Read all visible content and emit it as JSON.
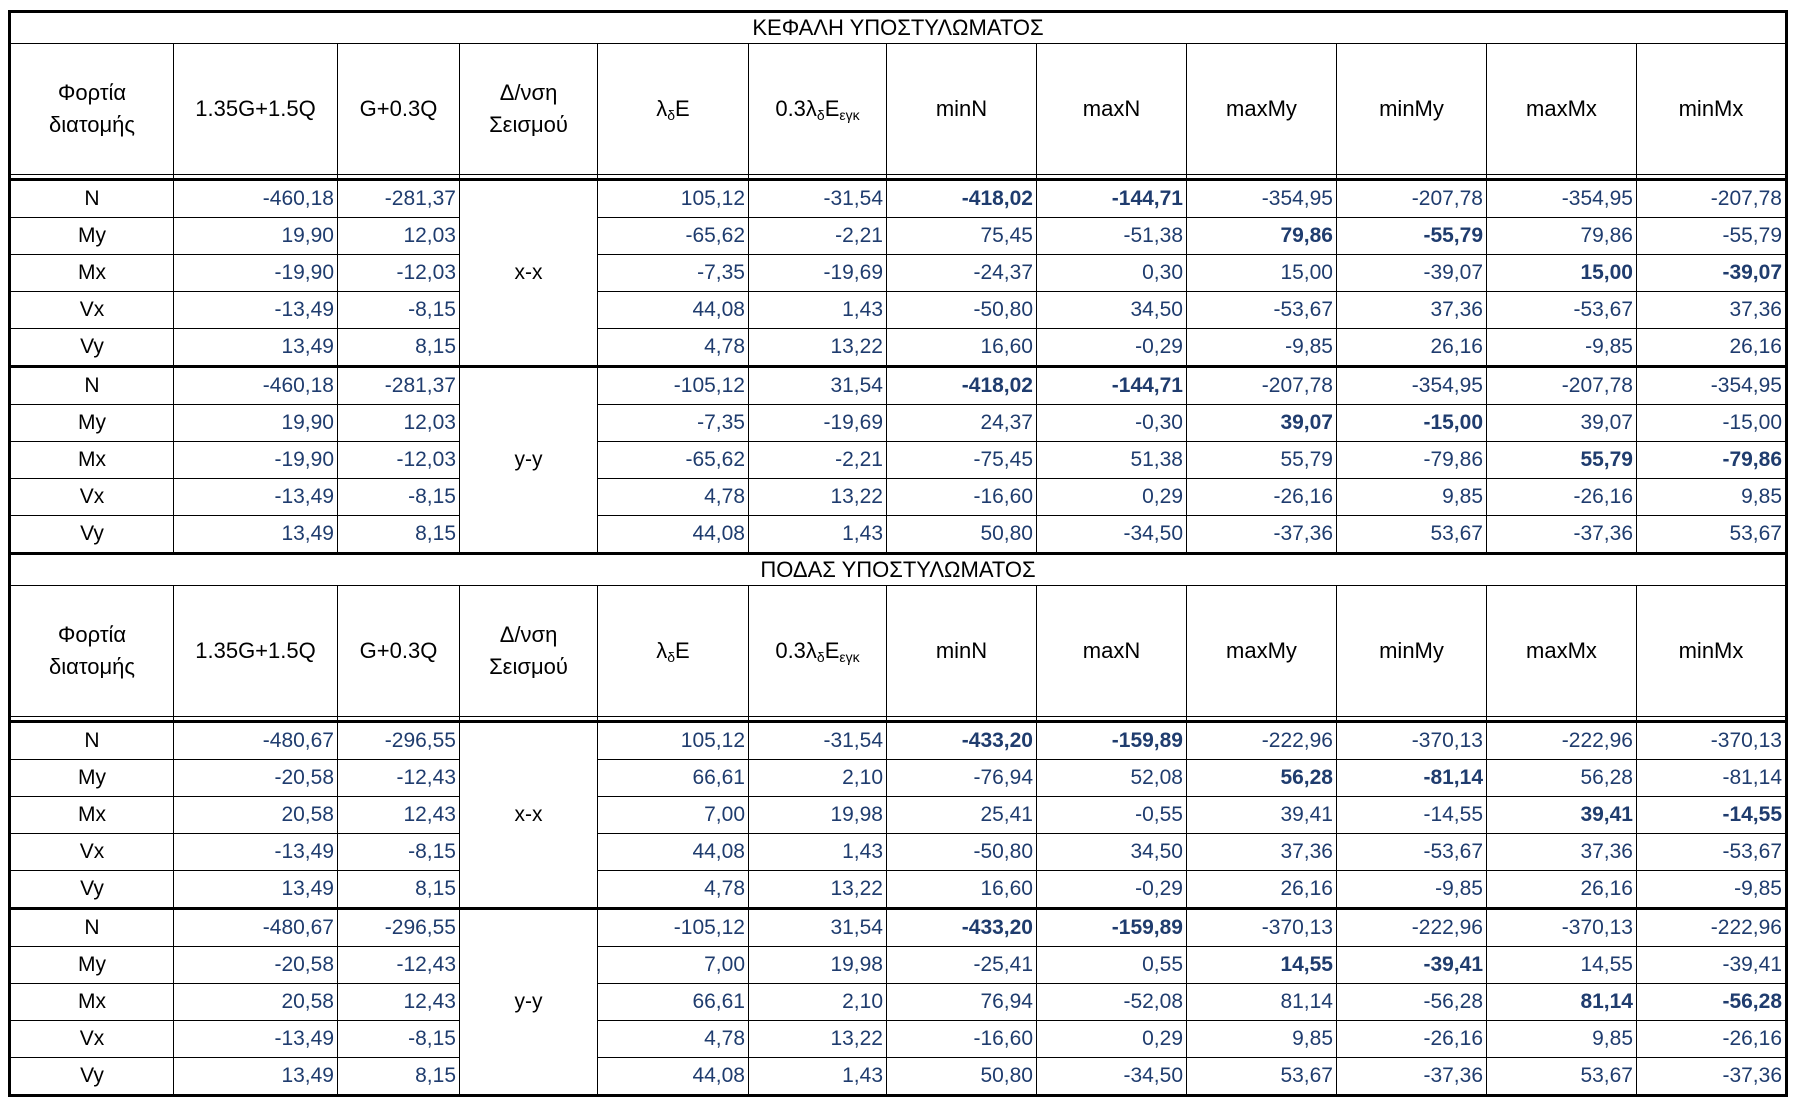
{
  "sections": [
    {
      "title": "ΚΕΦΑΛΗ ΥΠΟΣΤΥΛΩΜΑΤΟΣ",
      "headers": [
        "Φορτία διατομής",
        "1.35G+1.5Q",
        "G+0.3Q",
        "Δ/νση Σεισμού",
        "λδE",
        "0.3λδEεγκ",
        "minN",
        "maxN",
        "maxMy",
        "minMy",
        "maxMx",
        "minMx"
      ],
      "groups": [
        {
          "direction": "x-x",
          "rows": [
            {
              "label": "N",
              "values": [
                "-460,18",
                "-281,37",
                "105,12",
                "-31,54",
                "-418,02",
                "-144,71",
                "-354,95",
                "-207,78",
                "-354,95",
                "-207,78"
              ],
              "bold": [
                4,
                5
              ]
            },
            {
              "label": "My",
              "values": [
                "19,90",
                "12,03",
                "-65,62",
                "-2,21",
                "75,45",
                "-51,38",
                "79,86",
                "-55,79",
                "79,86",
                "-55,79"
              ],
              "bold": [
                6,
                7
              ]
            },
            {
              "label": "Mx",
              "values": [
                "-19,90",
                "-12,03",
                "-7,35",
                "-19,69",
                "-24,37",
                "0,30",
                "15,00",
                "-39,07",
                "15,00",
                "-39,07"
              ],
              "bold": [
                8,
                9
              ]
            },
            {
              "label": "Vx",
              "values": [
                "-13,49",
                "-8,15",
                "44,08",
                "1,43",
                "-50,80",
                "34,50",
                "-53,67",
                "37,36",
                "-53,67",
                "37,36"
              ],
              "bold": []
            },
            {
              "label": "Vy",
              "values": [
                "13,49",
                "8,15",
                "4,78",
                "13,22",
                "16,60",
                "-0,29",
                "-9,85",
                "26,16",
                "-9,85",
                "26,16"
              ],
              "bold": []
            }
          ]
        },
        {
          "direction": "y-y",
          "rows": [
            {
              "label": "N",
              "values": [
                "-460,18",
                "-281,37",
                "-105,12",
                "31,54",
                "-418,02",
                "-144,71",
                "-207,78",
                "-354,95",
                "-207,78",
                "-354,95"
              ],
              "bold": [
                4,
                5
              ]
            },
            {
              "label": "My",
              "values": [
                "19,90",
                "12,03",
                "-7,35",
                "-19,69",
                "24,37",
                "-0,30",
                "39,07",
                "-15,00",
                "39,07",
                "-15,00"
              ],
              "bold": [
                6,
                7
              ]
            },
            {
              "label": "Mx",
              "values": [
                "-19,90",
                "-12,03",
                "-65,62",
                "-2,21",
                "-75,45",
                "51,38",
                "55,79",
                "-79,86",
                "55,79",
                "-79,86"
              ],
              "bold": [
                8,
                9
              ]
            },
            {
              "label": "Vx",
              "values": [
                "-13,49",
                "-8,15",
                "4,78",
                "13,22",
                "-16,60",
                "0,29",
                "-26,16",
                "9,85",
                "-26,16",
                "9,85"
              ],
              "bold": []
            },
            {
              "label": "Vy",
              "values": [
                "13,49",
                "8,15",
                "44,08",
                "1,43",
                "50,80",
                "-34,50",
                "-37,36",
                "53,67",
                "-37,36",
                "53,67"
              ],
              "bold": []
            }
          ]
        }
      ]
    },
    {
      "title": "ΠΟΔΑΣ ΥΠΟΣΤΥΛΩΜΑΤΟΣ",
      "headers": [
        "Φορτία διατομής",
        "1.35G+1.5Q",
        "G+0.3Q",
        "Δ/νση Σεισμού",
        "λδE",
        "0.3λδEεγκ",
        "minN",
        "maxN",
        "maxMy",
        "minMy",
        "maxMx",
        "minMx"
      ],
      "groups": [
        {
          "direction": "x-x",
          "rows": [
            {
              "label": "N",
              "values": [
                "-480,67",
                "-296,55",
                "105,12",
                "-31,54",
                "-433,20",
                "-159,89",
                "-222,96",
                "-370,13",
                "-222,96",
                "-370,13"
              ],
              "bold": [
                4,
                5
              ]
            },
            {
              "label": "My",
              "values": [
                "-20,58",
                "-12,43",
                "66,61",
                "2,10",
                "-76,94",
                "52,08",
                "56,28",
                "-81,14",
                "56,28",
                "-81,14"
              ],
              "bold": [
                6,
                7
              ]
            },
            {
              "label": "Mx",
              "values": [
                "20,58",
                "12,43",
                "7,00",
                "19,98",
                "25,41",
                "-0,55",
                "39,41",
                "-14,55",
                "39,41",
                "-14,55"
              ],
              "bold": [
                8,
                9
              ]
            },
            {
              "label": "Vx",
              "values": [
                "-13,49",
                "-8,15",
                "44,08",
                "1,43",
                "-50,80",
                "34,50",
                "37,36",
                "-53,67",
                "37,36",
                "-53,67"
              ],
              "bold": []
            },
            {
              "label": "Vy",
              "values": [
                "13,49",
                "8,15",
                "4,78",
                "13,22",
                "16,60",
                "-0,29",
                "26,16",
                "-9,85",
                "26,16",
                "-9,85"
              ],
              "bold": []
            }
          ]
        },
        {
          "direction": "y-y",
          "rows": [
            {
              "label": "N",
              "values": [
                "-480,67",
                "-296,55",
                "-105,12",
                "31,54",
                "-433,20",
                "-159,89",
                "-370,13",
                "-222,96",
                "-370,13",
                "-222,96"
              ],
              "bold": [
                4,
                5
              ]
            },
            {
              "label": "My",
              "values": [
                "-20,58",
                "-12,43",
                "7,00",
                "19,98",
                "-25,41",
                "0,55",
                "14,55",
                "-39,41",
                "14,55",
                "-39,41"
              ],
              "bold": [
                6,
                7
              ]
            },
            {
              "label": "Mx",
              "values": [
                "20,58",
                "12,43",
                "66,61",
                "2,10",
                "76,94",
                "-52,08",
                "81,14",
                "-56,28",
                "81,14",
                "-56,28"
              ],
              "bold": [
                8,
                9
              ]
            },
            {
              "label": "Vx",
              "values": [
                "-13,49",
                "-8,15",
                "4,78",
                "13,22",
                "-16,60",
                "0,29",
                "9,85",
                "-26,16",
                "9,85",
                "-26,16"
              ],
              "bold": []
            },
            {
              "label": "Vy",
              "values": [
                "13,49",
                "8,15",
                "44,08",
                "1,43",
                "50,80",
                "-34,50",
                "53,67",
                "-37,36",
                "53,67",
                "-37,36"
              ],
              "bold": []
            }
          ]
        }
      ]
    }
  ],
  "colors": {
    "value_text": "#1f3c6e",
    "border": "#000000"
  }
}
